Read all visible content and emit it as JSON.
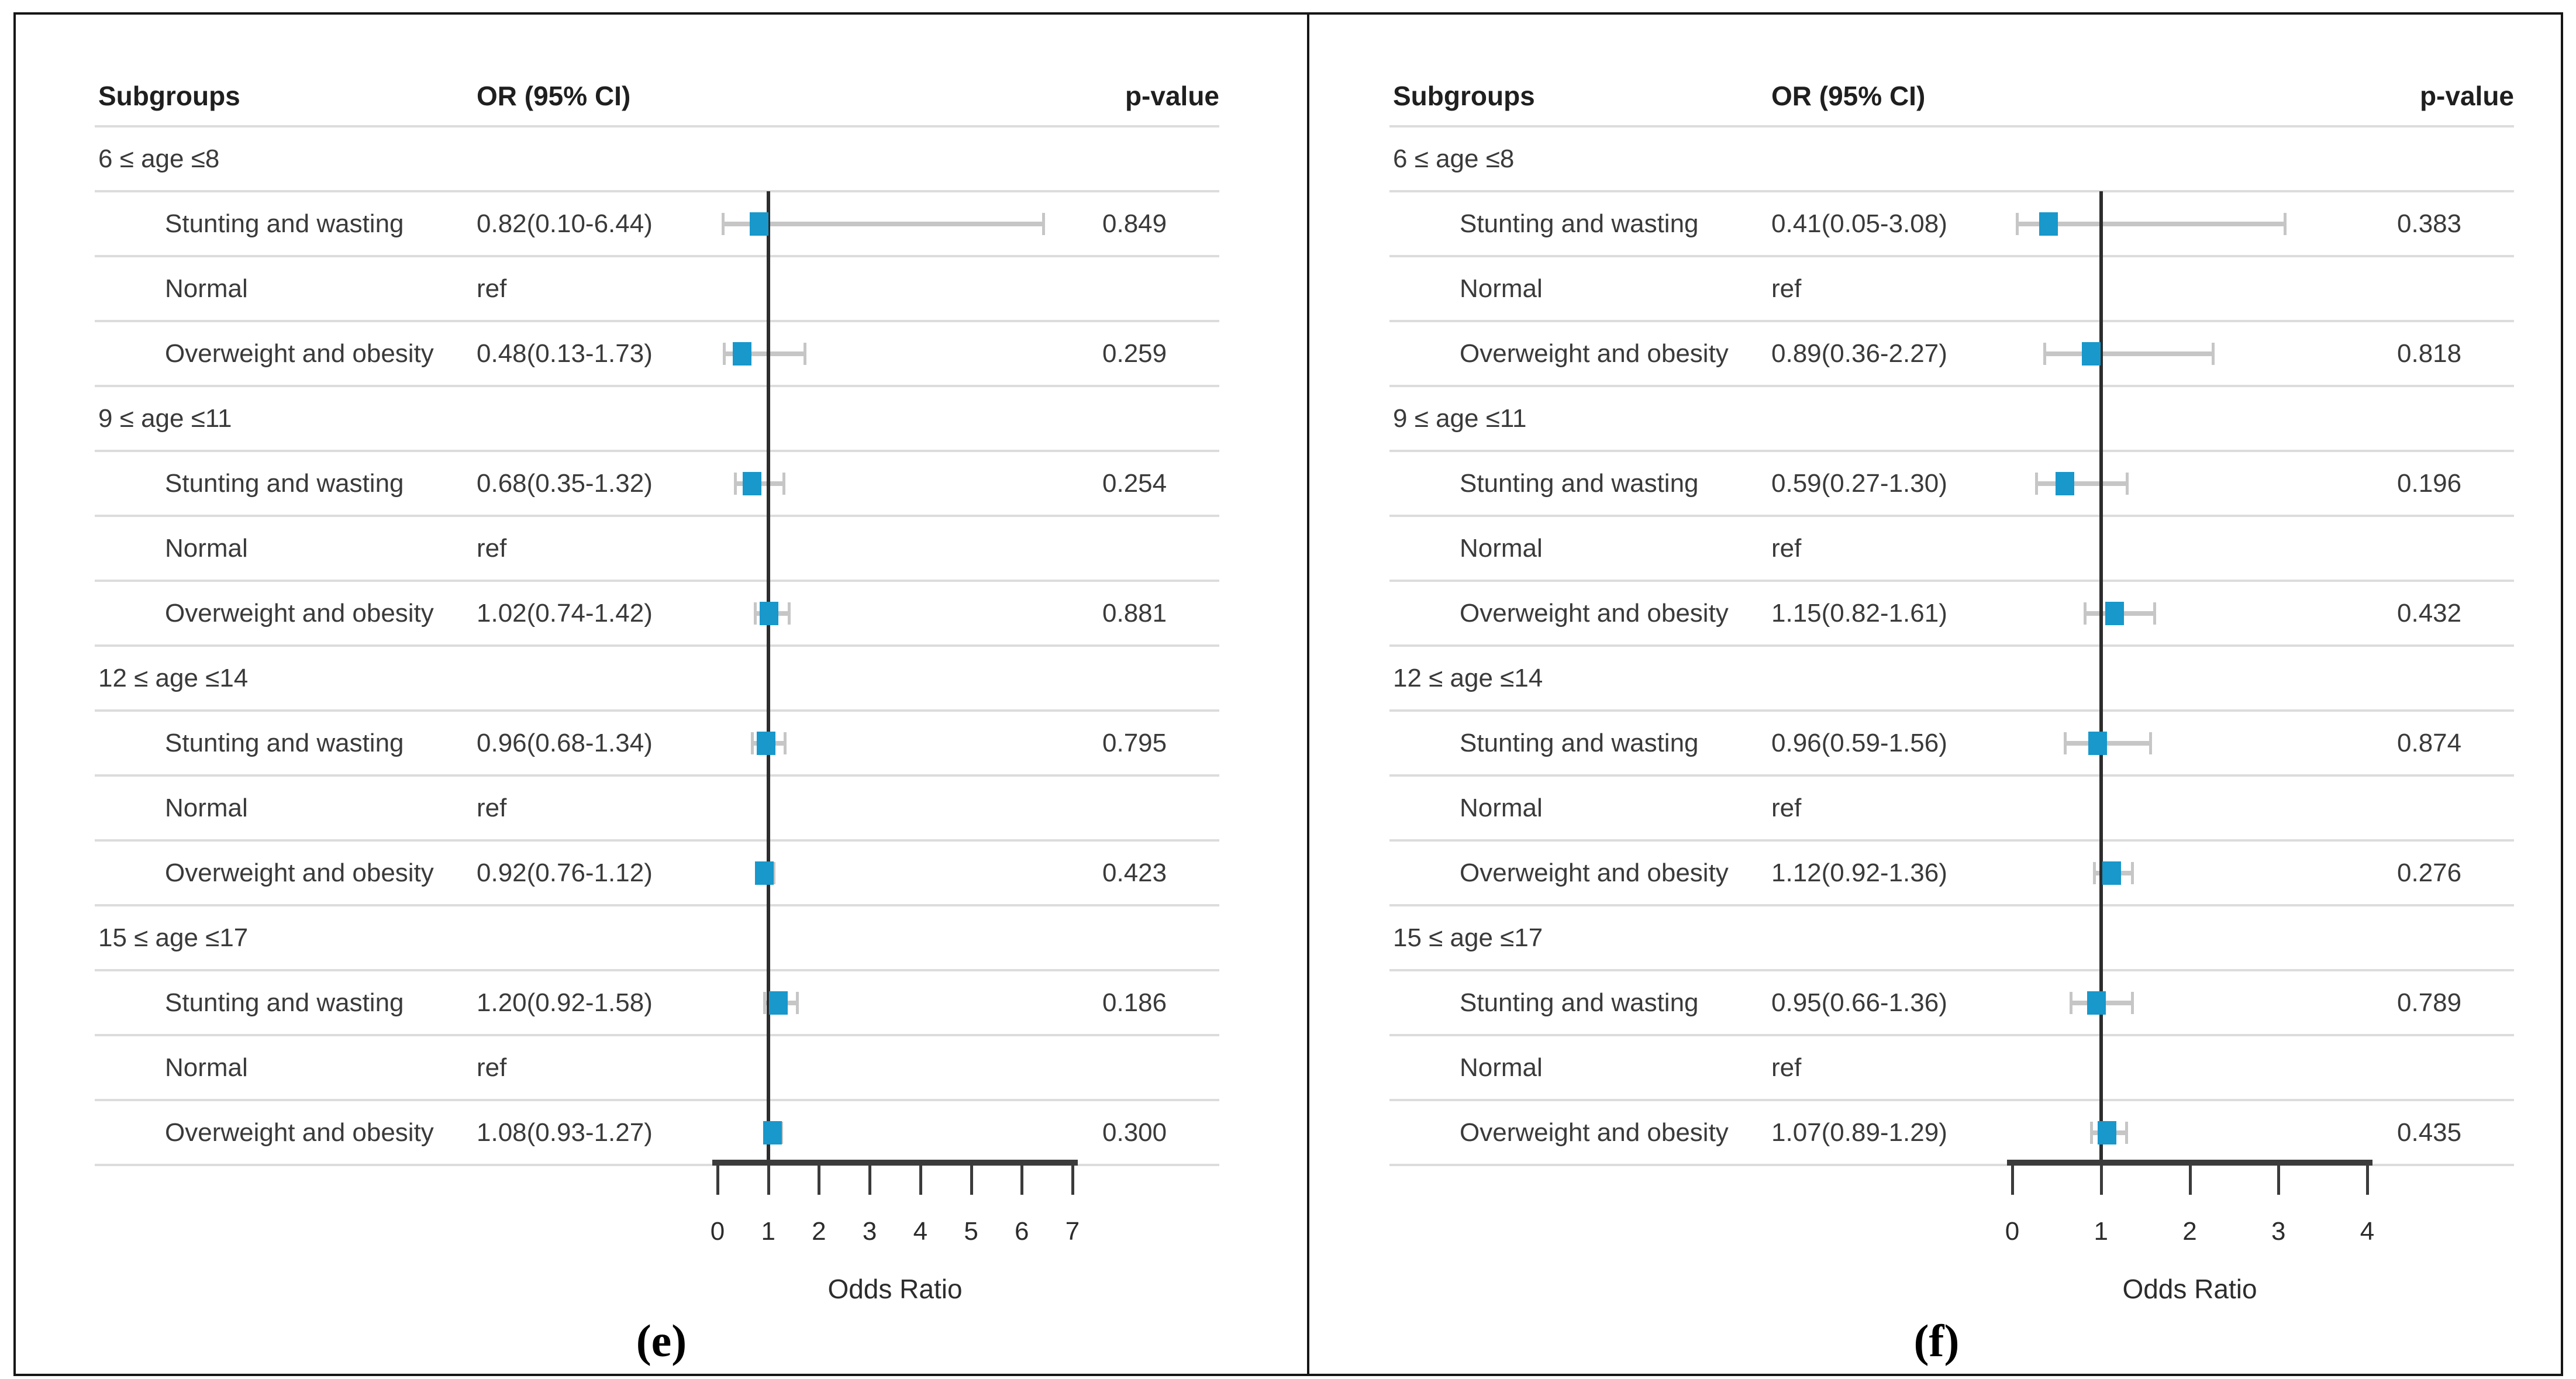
{
  "figure": {
    "background": "#ffffff",
    "border_color": "#161616"
  },
  "colors": {
    "marker": "#1898cb",
    "error_bar": "#c6c6c6",
    "ref_line": "#2d2d2d",
    "axis": "#3b3b3b",
    "gridline": "#dcdcdc",
    "header_text": "#1f1f1f",
    "body_text": "#3a3a3a"
  },
  "chart_data": [
    {
      "type": "forest",
      "caption": "(e)",
      "columns": {
        "subgroups": "Subgroups",
        "or_ci": "OR (95% CI)",
        "p_value": "p-value"
      },
      "xlabel": "Odds Ratio",
      "xlim": [
        0,
        7
      ],
      "x_ticks": [
        0,
        1,
        2,
        3,
        4,
        5,
        6,
        7
      ],
      "ref_line": 1,
      "grid": "horizontal-rules",
      "legend": "none",
      "groups": [
        {
          "label": "6 ≤ age ≤8",
          "rows": [
            {
              "label": "Stunting and wasting",
              "or_text": "0.82(0.10-6.44)",
              "or": 0.82,
              "ci": [
                0.1,
                6.44
              ],
              "p": "0.849"
            },
            {
              "label": "Normal",
              "or_text": "ref"
            },
            {
              "label": "Overweight and obesity",
              "or_text": "0.48(0.13-1.73)",
              "or": 0.48,
              "ci": [
                0.13,
                1.73
              ],
              "p": "0.259"
            }
          ]
        },
        {
          "label": "9 ≤ age ≤11",
          "rows": [
            {
              "label": "Stunting and wasting",
              "or_text": "0.68(0.35-1.32)",
              "or": 0.68,
              "ci": [
                0.35,
                1.32
              ],
              "p": "0.254"
            },
            {
              "label": "Normal",
              "or_text": "ref"
            },
            {
              "label": "Overweight and obesity",
              "or_text": "1.02(0.74-1.42)",
              "or": 1.02,
              "ci": [
                0.74,
                1.42
              ],
              "p": "0.881"
            }
          ]
        },
        {
          "label": "12 ≤ age ≤14",
          "rows": [
            {
              "label": "Stunting and wasting",
              "or_text": "0.96(0.68-1.34)",
              "or": 0.96,
              "ci": [
                0.68,
                1.34
              ],
              "p": "0.795"
            },
            {
              "label": "Normal",
              "or_text": "ref"
            },
            {
              "label": "Overweight and obesity",
              "or_text": "0.92(0.76-1.12)",
              "or": 0.92,
              "ci": [
                0.76,
                1.12
              ],
              "p": "0.423"
            }
          ]
        },
        {
          "label": "15 ≤ age ≤17",
          "rows": [
            {
              "label": "Stunting and wasting",
              "or_text": "1.20(0.92-1.58)",
              "or": 1.2,
              "ci": [
                0.92,
                1.58
              ],
              "p": "0.186"
            },
            {
              "label": "Normal",
              "or_text": "ref"
            },
            {
              "label": "Overweight and obesity",
              "or_text": "1.08(0.93-1.27)",
              "or": 1.08,
              "ci": [
                0.93,
                1.27
              ],
              "p": "0.300"
            }
          ]
        }
      ]
    },
    {
      "type": "forest",
      "caption": "(f)",
      "columns": {
        "subgroups": "Subgroups",
        "or_ci": "OR (95% CI)",
        "p_value": "p-value"
      },
      "xlabel": "Odds Ratio",
      "xlim": [
        0,
        4
      ],
      "x_ticks": [
        0,
        1,
        2,
        3,
        4
      ],
      "ref_line": 1,
      "grid": "horizontal-rules",
      "legend": "none",
      "groups": [
        {
          "label": "6 ≤ age ≤8",
          "rows": [
            {
              "label": "Stunting and wasting",
              "or_text": "0.41(0.05-3.08)",
              "or": 0.41,
              "ci": [
                0.05,
                3.08
              ],
              "p": "0.383"
            },
            {
              "label": "Normal",
              "or_text": "ref"
            },
            {
              "label": "Overweight and obesity",
              "or_text": "0.89(0.36-2.27)",
              "or": 0.89,
              "ci": [
                0.36,
                2.27
              ],
              "p": "0.818"
            }
          ]
        },
        {
          "label": "9 ≤ age ≤11",
          "rows": [
            {
              "label": "Stunting and wasting",
              "or_text": "0.59(0.27-1.30)",
              "or": 0.59,
              "ci": [
                0.27,
                1.3
              ],
              "p": "0.196"
            },
            {
              "label": "Normal",
              "or_text": "ref"
            },
            {
              "label": "Overweight and obesity",
              "or_text": "1.15(0.82-1.61)",
              "or": 1.15,
              "ci": [
                0.82,
                1.61
              ],
              "p": "0.432"
            }
          ]
        },
        {
          "label": "12 ≤ age ≤14",
          "rows": [
            {
              "label": "Stunting and wasting",
              "or_text": "0.96(0.59-1.56)",
              "or": 0.96,
              "ci": [
                0.59,
                1.56
              ],
              "p": "0.874"
            },
            {
              "label": "Normal",
              "or_text": "ref"
            },
            {
              "label": "Overweight and obesity",
              "or_text": "1.12(0.92-1.36)",
              "or": 1.12,
              "ci": [
                0.92,
                1.36
              ],
              "p": "0.276"
            }
          ]
        },
        {
          "label": "15 ≤ age ≤17",
          "rows": [
            {
              "label": "Stunting and wasting",
              "or_text": "0.95(0.66-1.36)",
              "or": 0.95,
              "ci": [
                0.66,
                1.36
              ],
              "p": "0.789"
            },
            {
              "label": "Normal",
              "or_text": "ref"
            },
            {
              "label": "Overweight and obesity",
              "or_text": "1.07(0.89-1.29)",
              "or": 1.07,
              "ci": [
                0.89,
                1.29
              ],
              "p": "0.435"
            }
          ]
        }
      ]
    }
  ]
}
